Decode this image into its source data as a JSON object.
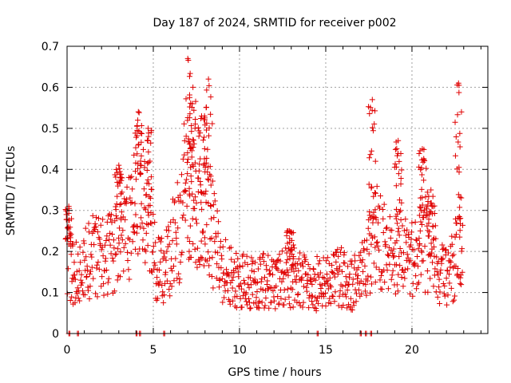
{
  "chart_data": {
    "type": "scatter",
    "title": "Day 187 of 2024, SRMTID for receiver p002",
    "xlabel": "GPS time / hours",
    "ylabel": "SRMTID / TECUs",
    "xlim": [
      0,
      24.4
    ],
    "ylim": [
      0,
      0.7
    ],
    "xticks": [
      0,
      5,
      10,
      15,
      20
    ],
    "yticks": [
      0,
      0.1,
      0.2,
      0.3,
      0.4,
      0.5,
      0.6,
      0.7
    ],
    "xtick_labels": [
      "0",
      "5",
      "10",
      "15",
      "20"
    ],
    "ytick_labels": [
      "0",
      "0.1",
      "0.2",
      "0.3",
      "0.4",
      "0.5",
      "0.6",
      "0.7"
    ],
    "grid": true,
    "marker": "+",
    "series": [
      {
        "name": "p002",
        "color": "#e00000",
        "trend": {
          "x": [
            0,
            0.3,
            0.8,
            1.5,
            2.2,
            2.8,
            3.3,
            3.7,
            4.1,
            4.4,
            4.8,
            5.1,
            5.5,
            5.9,
            6.3,
            6.7,
            7.1,
            7.5,
            7.9,
            8.3,
            8.7,
            9.2,
            10,
            11,
            12,
            12.8,
            13.6,
            14.4,
            15.2,
            16,
            16.6,
            17.2,
            17.6,
            18,
            18.6,
            19.2,
            19.8,
            20.4,
            20.9,
            21.4,
            21.9,
            22.3,
            22.7,
            23
          ],
          "y": [
            0.22,
            0.14,
            0.15,
            0.19,
            0.18,
            0.22,
            0.25,
            0.3,
            0.36,
            0.33,
            0.26,
            0.18,
            0.16,
            0.17,
            0.24,
            0.3,
            0.34,
            0.28,
            0.32,
            0.27,
            0.2,
            0.15,
            0.13,
            0.13,
            0.12,
            0.14,
            0.13,
            0.12,
            0.13,
            0.14,
            0.12,
            0.15,
            0.2,
            0.24,
            0.19,
            0.21,
            0.17,
            0.2,
            0.22,
            0.17,
            0.13,
            0.16,
            0.22,
            0.2
          ]
        },
        "peaks": [
          {
            "x": 0.1,
            "y": 0.31
          },
          {
            "x": 3.0,
            "y": 0.41
          },
          {
            "x": 4.1,
            "y": 0.52
          },
          {
            "x": 4.7,
            "y": 0.5
          },
          {
            "x": 7.0,
            "y": 0.67
          },
          {
            "x": 7.3,
            "y": 0.6
          },
          {
            "x": 7.8,
            "y": 0.53
          },
          {
            "x": 8.2,
            "y": 0.62
          },
          {
            "x": 12.9,
            "y": 0.25
          },
          {
            "x": 17.7,
            "y": 0.57
          },
          {
            "x": 19.2,
            "y": 0.47
          },
          {
            "x": 20.6,
            "y": 0.45
          },
          {
            "x": 21.1,
            "y": 0.35
          },
          {
            "x": 22.7,
            "y": 0.61
          }
        ],
        "zeros": [
          0.1,
          0.6,
          4.0,
          4.2,
          5.6,
          14.5,
          17.0,
          17.3,
          17.6
        ]
      }
    ]
  }
}
